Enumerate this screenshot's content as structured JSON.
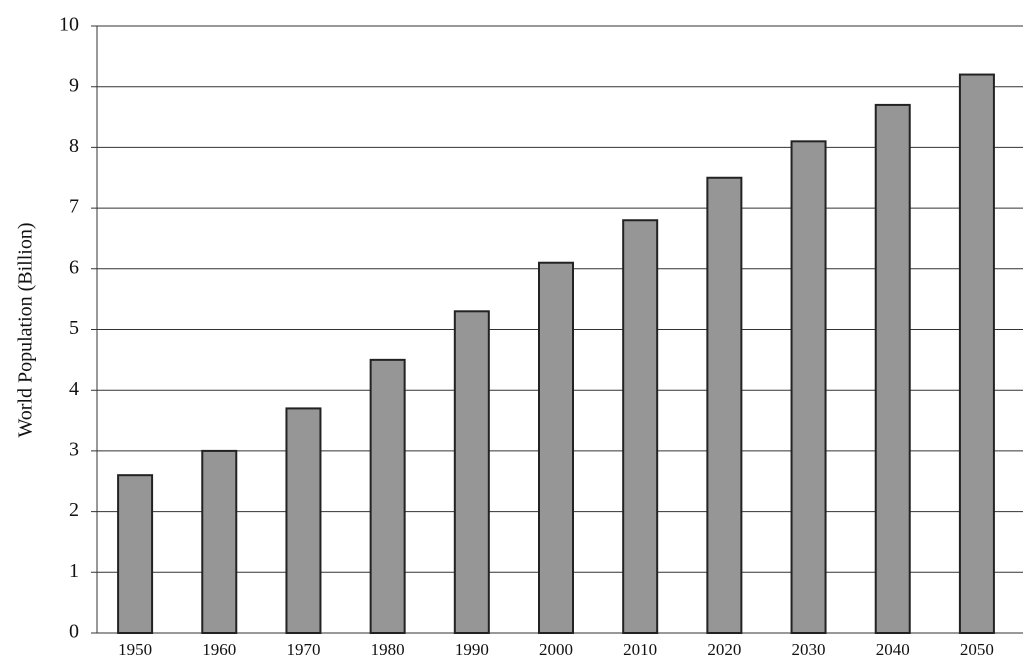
{
  "chart_data": {
    "type": "bar",
    "y_label": "World Population (Billion)",
    "categories": [
      "1950",
      "1960",
      "1970",
      "1980",
      "1990",
      "2000",
      "2010",
      "2020",
      "2030",
      "2040",
      "2050"
    ],
    "values": [
      2.6,
      3.0,
      3.7,
      4.5,
      5.3,
      6.1,
      6.8,
      7.5,
      8.1,
      8.7,
      9.2
    ],
    "color": "#969696",
    "ylim": [
      0,
      10
    ],
    "yticks": [
      0,
      1,
      2,
      3,
      4,
      5,
      6,
      7,
      8,
      9,
      10
    ],
    "grid": true
  }
}
